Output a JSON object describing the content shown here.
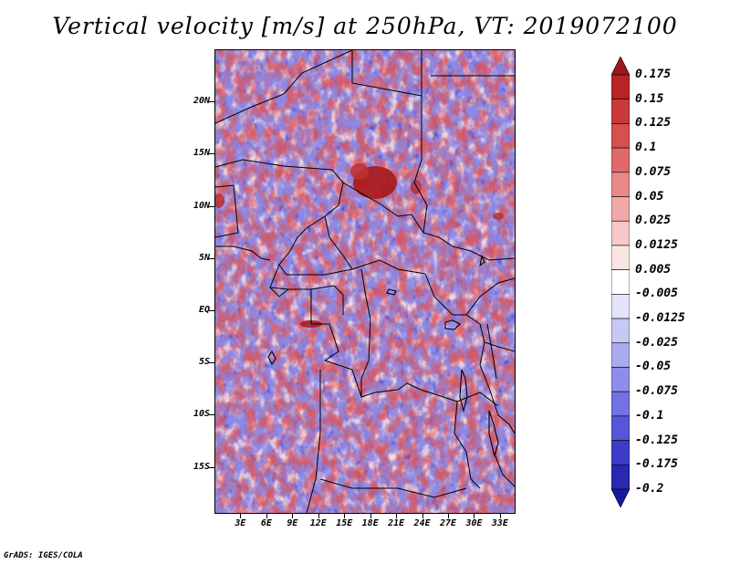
{
  "title": "Vertical velocity [m/s] at 250hPa, VT: 2019072100",
  "footer": "GrADS: IGES/COLA",
  "map": {
    "lat_labels": [
      "20N",
      "15N",
      "10N",
      "5N",
      "EQ",
      "5S",
      "10S",
      "15S"
    ],
    "lat_values": [
      20,
      15,
      10,
      5,
      0,
      -5,
      -10,
      -15
    ],
    "lon_labels": [
      "3E",
      "6E",
      "9E",
      "12E",
      "15E",
      "18E",
      "21E",
      "24E",
      "27E",
      "30E",
      "33E"
    ],
    "lon_values": [
      3,
      6,
      9,
      12,
      15,
      18,
      21,
      24,
      27,
      30,
      33
    ],
    "lat_range": [
      -19.5,
      25
    ],
    "lon_range": [
      0,
      34.8
    ],
    "positive_color": "#b22222",
    "negative_color": "#3030c0"
  },
  "colorbar": {
    "labels": [
      "0.175",
      "0.15",
      "0.125",
      "0.1",
      "0.075",
      "0.05",
      "0.025",
      "0.0125",
      "0.005",
      "-0.005",
      "-0.0125",
      "-0.025",
      "-0.05",
      "-0.075",
      "-0.1",
      "-0.125",
      "-0.175",
      "-0.2"
    ],
    "colors": [
      "#a01818",
      "#b82424",
      "#c83a3a",
      "#d65050",
      "#e06a6a",
      "#e88888",
      "#f0a8a8",
      "#f6c8c8",
      "#fbe4e4",
      "#ffffff",
      "#e4e4fa",
      "#c8c8f4",
      "#aaaaf0",
      "#8e8eea",
      "#7272e2",
      "#5656d6",
      "#3c3cc8",
      "#2828b0",
      "#1818a0"
    ]
  }
}
